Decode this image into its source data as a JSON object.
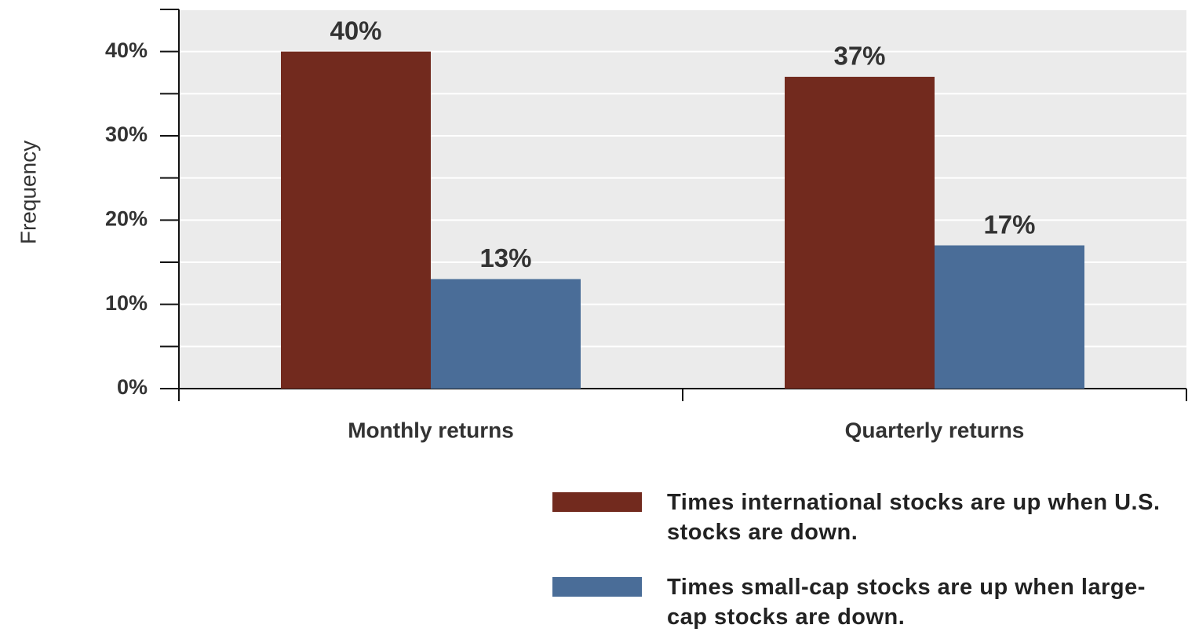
{
  "chart_data": {
    "type": "bar",
    "y_label": "Frequency",
    "categories": [
      "Monthly returns",
      "Quarterly returns"
    ],
    "series": [
      {
        "name": "Times international stocks are up when U.S. stocks are down.",
        "color": "#722a1e",
        "values": [
          40,
          37
        ],
        "value_labels": [
          "40%",
          "37%"
        ]
      },
      {
        "name": "Times small-cap stocks are up when large-cap stocks are down.",
        "color": "#4a6d98",
        "values": [
          13,
          17
        ],
        "value_labels": [
          "13%",
          "17%"
        ]
      }
    ],
    "ylim": [
      0,
      45
    ],
    "yticks": [
      {
        "value": 0,
        "label": "0%"
      },
      {
        "value": 10,
        "label": "10%"
      },
      {
        "value": 20,
        "label": "20%"
      },
      {
        "value": 30,
        "label": "30%"
      },
      {
        "value": 40,
        "label": "40%"
      }
    ],
    "minor_yticks": [
      5,
      15,
      25,
      35,
      45
    ],
    "grid": true
  }
}
